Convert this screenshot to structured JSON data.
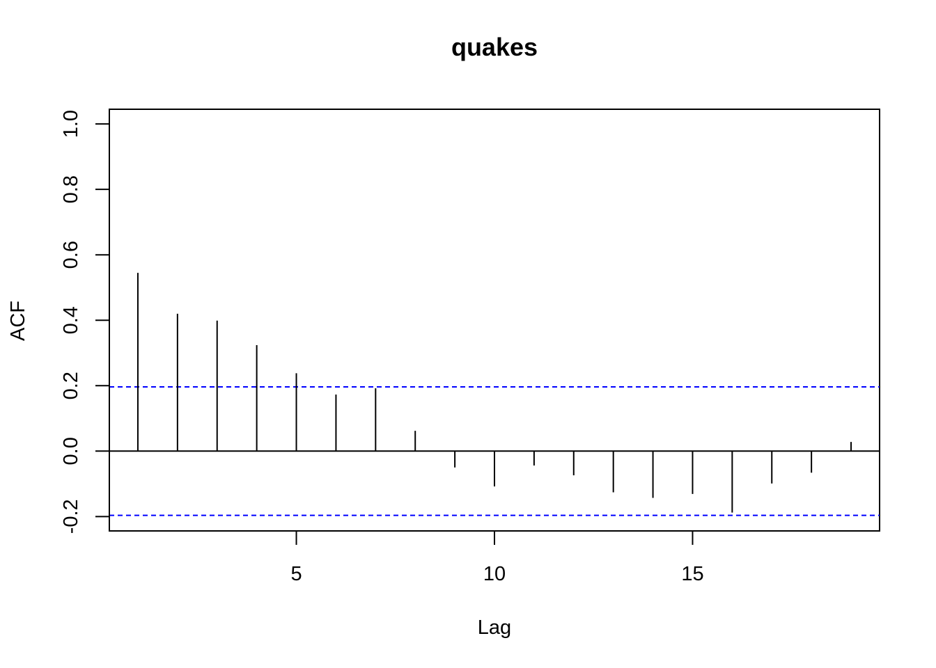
{
  "chart_data": {
    "type": "bar",
    "title": "quakes",
    "xlabel": "Lag",
    "ylabel": "ACF",
    "x": [
      1,
      2,
      3,
      4,
      5,
      6,
      7,
      8,
      9,
      10,
      11,
      12,
      13,
      14,
      15,
      16,
      17,
      18,
      19
    ],
    "values": [
      0.545,
      0.42,
      0.399,
      0.324,
      0.238,
      0.173,
      0.192,
      0.062,
      -0.05,
      -0.108,
      -0.044,
      -0.074,
      -0.126,
      -0.143,
      -0.131,
      -0.188,
      -0.099,
      -0.066,
      0.028
    ],
    "xlim": [
      0.28,
      19.72
    ],
    "ylim": [
      -0.244,
      1.045
    ],
    "x_ticks": [
      5,
      10,
      15
    ],
    "x_tick_labels": [
      "5",
      "10",
      "15"
    ],
    "y_ticks": [
      -0.2,
      0.0,
      0.2,
      0.4,
      0.6,
      0.8,
      1.0
    ],
    "y_tick_labels": [
      "-0.2",
      "0.0",
      "0.2",
      "0.4",
      "0.6",
      "0.8",
      "1.0"
    ],
    "confidence_bound": 0.1964,
    "zero_line": 0,
    "grid": false,
    "colors": {
      "bars": "#000000",
      "confidence_lines": "#0000ff",
      "frame": "#000000"
    }
  }
}
